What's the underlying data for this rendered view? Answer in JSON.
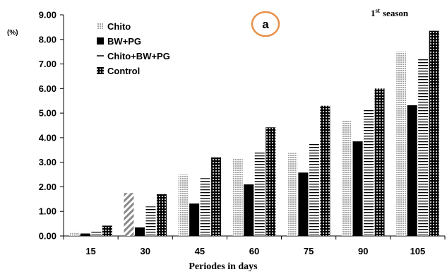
{
  "chart_data": {
    "type": "bar",
    "title": "",
    "panel_label": "a",
    "season_number": "1",
    "season_suffix": "st",
    "season_word": "season",
    "xlabel": "Periodes in days",
    "ylabel": "(%)",
    "ylim": [
      0,
      9
    ],
    "yticks": [
      "0.00",
      "1.00",
      "2.00",
      "3.00",
      "4.00",
      "5.00",
      "6.00",
      "7.00",
      "8.00",
      "9.00"
    ],
    "grid": false,
    "legend_position": "top-left",
    "categories": [
      "15",
      "30",
      "45",
      "60",
      "75",
      "90",
      "105"
    ],
    "series": [
      {
        "name": "Chito",
        "values": [
          0.15,
          1.75,
          2.5,
          3.15,
          3.38,
          4.7,
          7.5
        ]
      },
      {
        "name": "BW+PG",
        "values": [
          0.1,
          0.35,
          1.32,
          2.1,
          2.58,
          3.85,
          5.32
        ]
      },
      {
        "name": "Chito+BW+PG",
        "values": [
          0.18,
          1.2,
          2.35,
          3.45,
          3.8,
          5.15,
          7.25
        ]
      },
      {
        "name": "Control",
        "values": [
          0.42,
          1.7,
          3.2,
          4.42,
          5.3,
          6.0,
          8.35
        ]
      }
    ],
    "colors": {
      "Chito": "#b8b8b8",
      "BW+PG": "#000000",
      "Chito+BW+PG": "#000000",
      "Control": "#000000",
      "badge_outline": "#e8914a"
    }
  }
}
